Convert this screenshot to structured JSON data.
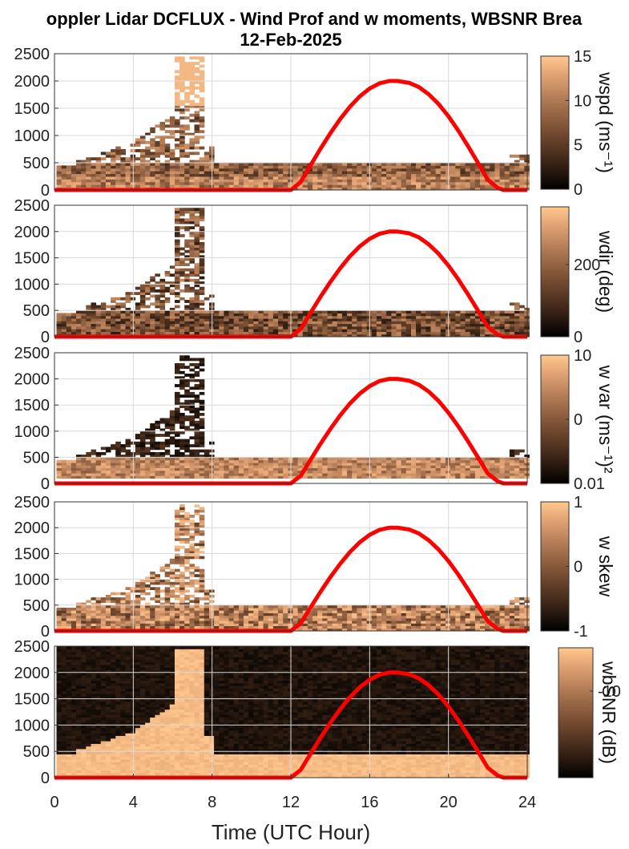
{
  "chart_data": {
    "type": "heatmap",
    "title": "oppler Lidar DCFLUX - Wind Prof and w moments, WBSNR Brea",
    "subtitle": "12-Feb-2025",
    "xlabel": "Time (UTC Hour)",
    "xlim": [
      0,
      24
    ],
    "xticks": [
      "0",
      "4",
      "8",
      "12",
      "16",
      "20",
      "24"
    ],
    "ylim": [
      0,
      2500
    ],
    "yticks": [
      "0",
      "500",
      "1000",
      "1500",
      "2000",
      "2500"
    ],
    "colormap": [
      "#000000",
      "#3a2416",
      "#7a4f33",
      "#b8805a",
      "#e7a878",
      "#ffc88e"
    ],
    "overlay_color": "#ff0000",
    "overlay": {
      "x": [
        0,
        12.0,
        12.5,
        13,
        13.5,
        14,
        14.5,
        15,
        15.5,
        16,
        16.5,
        17,
        17.4,
        18,
        18.5,
        19,
        19.5,
        20,
        20.5,
        21,
        21.5,
        22,
        22.5,
        22.8,
        24
      ],
      "y": [
        0,
        0,
        148,
        454,
        756,
        1040,
        1300,
        1530,
        1718,
        1862,
        1958,
        2000,
        2000,
        1966,
        1888,
        1756,
        1576,
        1352,
        1090,
        800,
        498,
        188,
        40,
        0,
        0
      ]
    },
    "panels": [
      {
        "colorbar_label": "wspd (ms⁻¹)",
        "clim": [
          0,
          15
        ],
        "cb_ticks": [
          "0",
          "5",
          "10",
          "15"
        ]
      },
      {
        "colorbar_label": "wdir (deg)",
        "clim": [
          0,
          360
        ],
        "cb_ticks": [
          "0",
          "200"
        ]
      },
      {
        "colorbar_label": "w var (ms⁻¹)²",
        "clim": [
          0.01,
          10
        ],
        "cb_ticks": [
          "0.01",
          "0",
          "10"
        ]
      },
      {
        "colorbar_label": "w skew",
        "clim": [
          -1,
          1
        ],
        "cb_ticks": [
          "-1",
          "0",
          "1"
        ]
      },
      {
        "colorbar_label": "wbSNR (dB)",
        "clim": [
          -30,
          0
        ],
        "cb_ticks": [
          "-10"
        ]
      }
    ]
  }
}
